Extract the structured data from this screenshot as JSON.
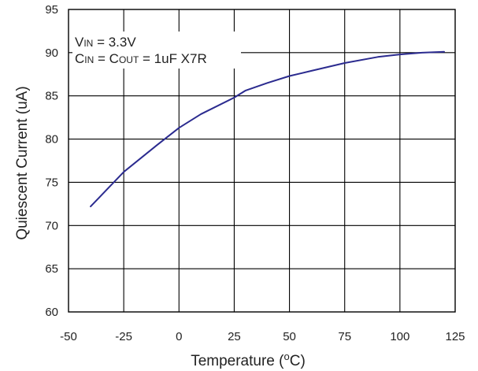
{
  "chart_data": {
    "type": "line",
    "title": "",
    "xlabel_main": "Temperature (",
    "xlabel_sup": "o",
    "xlabel_end": "C)",
    "ylabel": "Quiescent Current (uA)",
    "xlim": [
      -50,
      125
    ],
    "ylim": [
      60,
      95
    ],
    "xticks": [
      -50,
      -25,
      0,
      25,
      50,
      75,
      100,
      125
    ],
    "yticks": [
      60,
      65,
      70,
      75,
      80,
      85,
      90,
      95
    ],
    "grid": true,
    "line_color": "#2b2b8f",
    "annotation": {
      "line1_main": "V",
      "line1_sub": "IN",
      "line1_rest": " = 3.3V",
      "line2_c1": "C",
      "line2_s1": "IN",
      "line2_mid": " = C",
      "line2_s2": "OUT",
      "line2_rest": " = 1uF X7R"
    },
    "series": [
      {
        "x": [
          -40,
          -25,
          -10,
          0,
          10,
          25,
          30,
          40,
          50,
          60,
          75,
          90,
          100,
          110,
          120
        ],
        "y": [
          72.2,
          76.2,
          79.3,
          81.3,
          82.9,
          84.8,
          85.6,
          86.5,
          87.3,
          87.9,
          88.8,
          89.5,
          89.8,
          90.0,
          90.1
        ]
      }
    ]
  }
}
